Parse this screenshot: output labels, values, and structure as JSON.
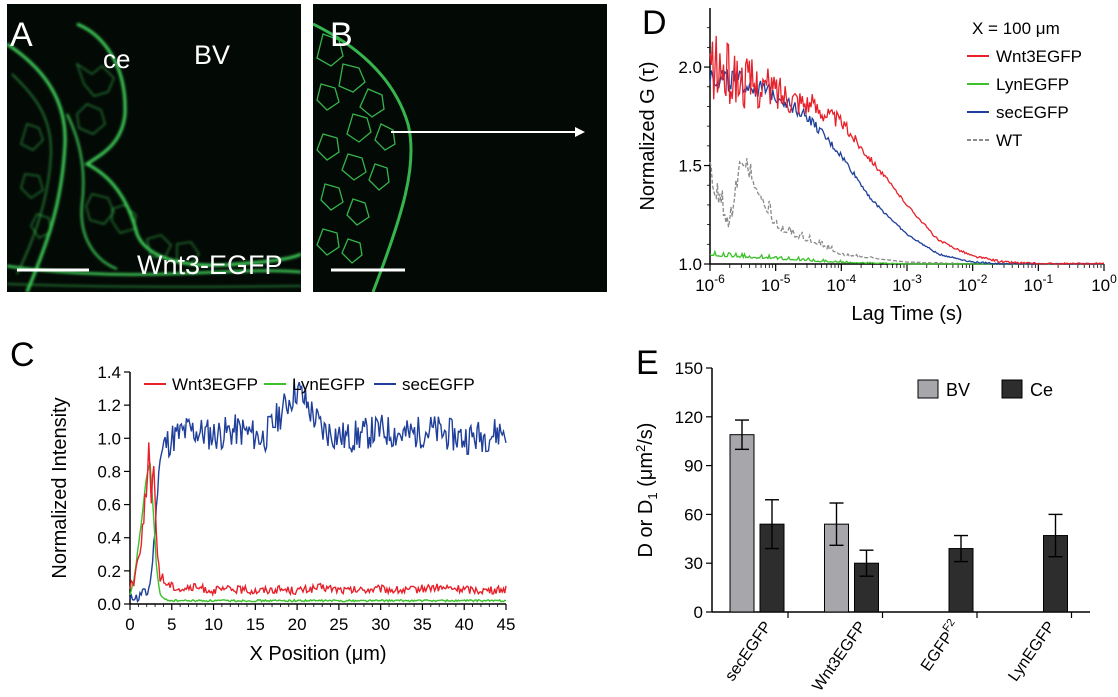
{
  "panels": {
    "A": {
      "letter": "A",
      "labels": {
        "ce": "ce",
        "bv": "BV",
        "construct": "Wnt3-EGFP"
      }
    },
    "B": {
      "letter": "B"
    },
    "C": {
      "letter": "C"
    },
    "D": {
      "letter": "D"
    },
    "E": {
      "letter": "E"
    }
  },
  "colors": {
    "red": "#e8202a",
    "green": "#3cc12b",
    "blue": "#1f3f9a",
    "gray": "#8a8a8a",
    "bar_bv": "#a6a6ab",
    "bar_ce": "#2d2d2d",
    "micro_green": "#3fd25a"
  },
  "chart_data": [
    {
      "id": "C",
      "type": "line",
      "xlabel": "X Position (μm)",
      "ylabel": "Normalized Intensity",
      "xlim": [
        0,
        45
      ],
      "ylim": [
        0,
        1.4
      ],
      "xticks": [
        0,
        5,
        10,
        15,
        20,
        25,
        30,
        35,
        40,
        45
      ],
      "yticks": [
        0.0,
        0.2,
        0.4,
        0.6,
        0.8,
        1.0,
        1.2,
        1.4
      ],
      "ytick_labels": [
        "0.0",
        "0.2",
        "0.4",
        "0.6",
        "0.8",
        "1.0",
        "1.2",
        "1.4"
      ],
      "legend_position": "top",
      "series": [
        {
          "name": "Wnt3EGFP",
          "x": [
            0,
            0.5,
            1,
            1.5,
            2,
            2.3,
            2.5,
            2.8,
            3,
            3.3,
            3.6,
            4,
            4.5,
            5,
            6,
            8,
            10,
            12,
            15,
            18,
            20,
            23,
            26,
            30,
            33,
            36,
            40,
            43,
            45
          ],
          "y": [
            0.12,
            0.15,
            0.28,
            0.45,
            0.72,
            1.0,
            0.55,
            0.85,
            0.6,
            0.3,
            0.18,
            0.14,
            0.12,
            0.11,
            0.09,
            0.1,
            0.08,
            0.09,
            0.08,
            0.09,
            0.08,
            0.1,
            0.08,
            0.09,
            0.08,
            0.1,
            0.09,
            0.08,
            0.09
          ]
        },
        {
          "name": "LynEGFP",
          "x": [
            0,
            0.5,
            1,
            1.5,
            2,
            2.4,
            2.8,
            3.2,
            3.6,
            4,
            5,
            10,
            15,
            20,
            25,
            30,
            35,
            40,
            45
          ],
          "y": [
            0.05,
            0.15,
            0.35,
            0.55,
            0.78,
            0.85,
            0.55,
            0.2,
            0.06,
            0.03,
            0.02,
            0.02,
            0.02,
            0.02,
            0.02,
            0.02,
            0.02,
            0.02,
            0.02
          ]
        },
        {
          "name": "secEGFP",
          "x": [
            0,
            0.5,
            1,
            1.5,
            2,
            2.5,
            3,
            3.5,
            4,
            5,
            7,
            10,
            13,
            16,
            20,
            23,
            26,
            30,
            33,
            36,
            40,
            43,
            45
          ],
          "y": [
            0.02,
            0.05,
            0.03,
            0.08,
            0.05,
            0.15,
            0.45,
            0.85,
            0.95,
            1.0,
            1.05,
            1.02,
            1.05,
            1.0,
            1.3,
            1.05,
            1.0,
            1.05,
            1.02,
            1.05,
            1.0,
            1.02,
            1.05
          ]
        }
      ],
      "reference_line": {
        "y": 0.0,
        "style": "dotted"
      }
    },
    {
      "id": "D",
      "type": "line",
      "title": "X = 100 μm",
      "xlabel": "Lag Time (s)",
      "ylabel": "Normalized G (τ)",
      "xscale": "log",
      "xlim": [
        1e-06,
        1
      ],
      "ylim": [
        1.0,
        2.3
      ],
      "xtick_exponents": [
        "-6",
        "-5",
        "-4",
        "-3",
        "-2",
        "-1",
        "0"
      ],
      "xtick_base": "10",
      "yticks": [
        1.0,
        1.5,
        2.0
      ],
      "ytick_labels": [
        "1.0",
        "1.5",
        "2.0"
      ],
      "legend_position": "top-right",
      "series": [
        {
          "name": "Wnt3EGFP",
          "x": [
            1e-06,
            3e-06,
            1e-05,
            3e-05,
            0.0001,
            0.0003,
            0.001,
            0.003,
            0.01,
            0.03,
            0.1,
            1
          ],
          "y": [
            2.0,
            1.93,
            1.88,
            1.82,
            1.72,
            1.52,
            1.3,
            1.12,
            1.04,
            1.01,
            1.0,
            1.0
          ]
        },
        {
          "name": "LynEGFP",
          "x": [
            1e-06,
            3e-06,
            1e-05,
            3e-05,
            0.0001,
            0.001,
            0.01,
            0.1,
            1
          ],
          "y": [
            1.05,
            1.04,
            1.03,
            1.02,
            1.01,
            1.0,
            1.0,
            1.0,
            1.0
          ]
        },
        {
          "name": "secEGFP",
          "x": [
            1e-06,
            3e-06,
            1e-05,
            3e-05,
            0.0001,
            0.0003,
            0.001,
            0.003,
            0.01,
            0.03,
            0.1,
            1
          ],
          "y": [
            1.96,
            1.92,
            1.86,
            1.75,
            1.55,
            1.32,
            1.15,
            1.05,
            1.01,
            1.0,
            1.0,
            1.0
          ]
        },
        {
          "name": "WT",
          "x": [
            1e-06,
            2e-06,
            3e-06,
            1e-05,
            2e-05,
            5e-05,
            0.0001,
            0.001,
            0.01,
            1
          ],
          "y": [
            1.45,
            1.2,
            1.55,
            1.2,
            1.15,
            1.1,
            1.05,
            1.01,
            1.0,
            1.0
          ]
        }
      ]
    },
    {
      "id": "E",
      "type": "bar",
      "ylabel": "D or D1 (μm2/s)",
      "ylabel_main": "D or D",
      "ylabel_sub": "1",
      "ylabel_unit_pre": " (μm",
      "ylabel_unit_sup": "2",
      "ylabel_unit_post": "/s)",
      "ylim": [
        0,
        150
      ],
      "yticks": [
        0,
        30,
        60,
        90,
        120,
        150
      ],
      "ytick_labels": [
        "0",
        "30",
        "60",
        "90",
        "120",
        "150"
      ],
      "categories": [
        "secEGFP",
        "Wnt3EGFP",
        "EGFPF2",
        "LynEGFP"
      ],
      "category_labels": [
        {
          "main": "secEGFP",
          "sup": ""
        },
        {
          "main": "Wnt3EGFP",
          "sup": ""
        },
        {
          "main": "EGFP",
          "sup": "F2"
        },
        {
          "main": "LynEGFP",
          "sup": ""
        }
      ],
      "legend_position": "top-right",
      "series": [
        {
          "name": "BV",
          "values": [
            109,
            54,
            null,
            null
          ],
          "errors": [
            9,
            13,
            null,
            null
          ]
        },
        {
          "name": "Ce",
          "values": [
            54,
            30,
            39,
            47
          ],
          "errors": [
            15,
            8,
            8,
            13
          ]
        }
      ]
    }
  ]
}
